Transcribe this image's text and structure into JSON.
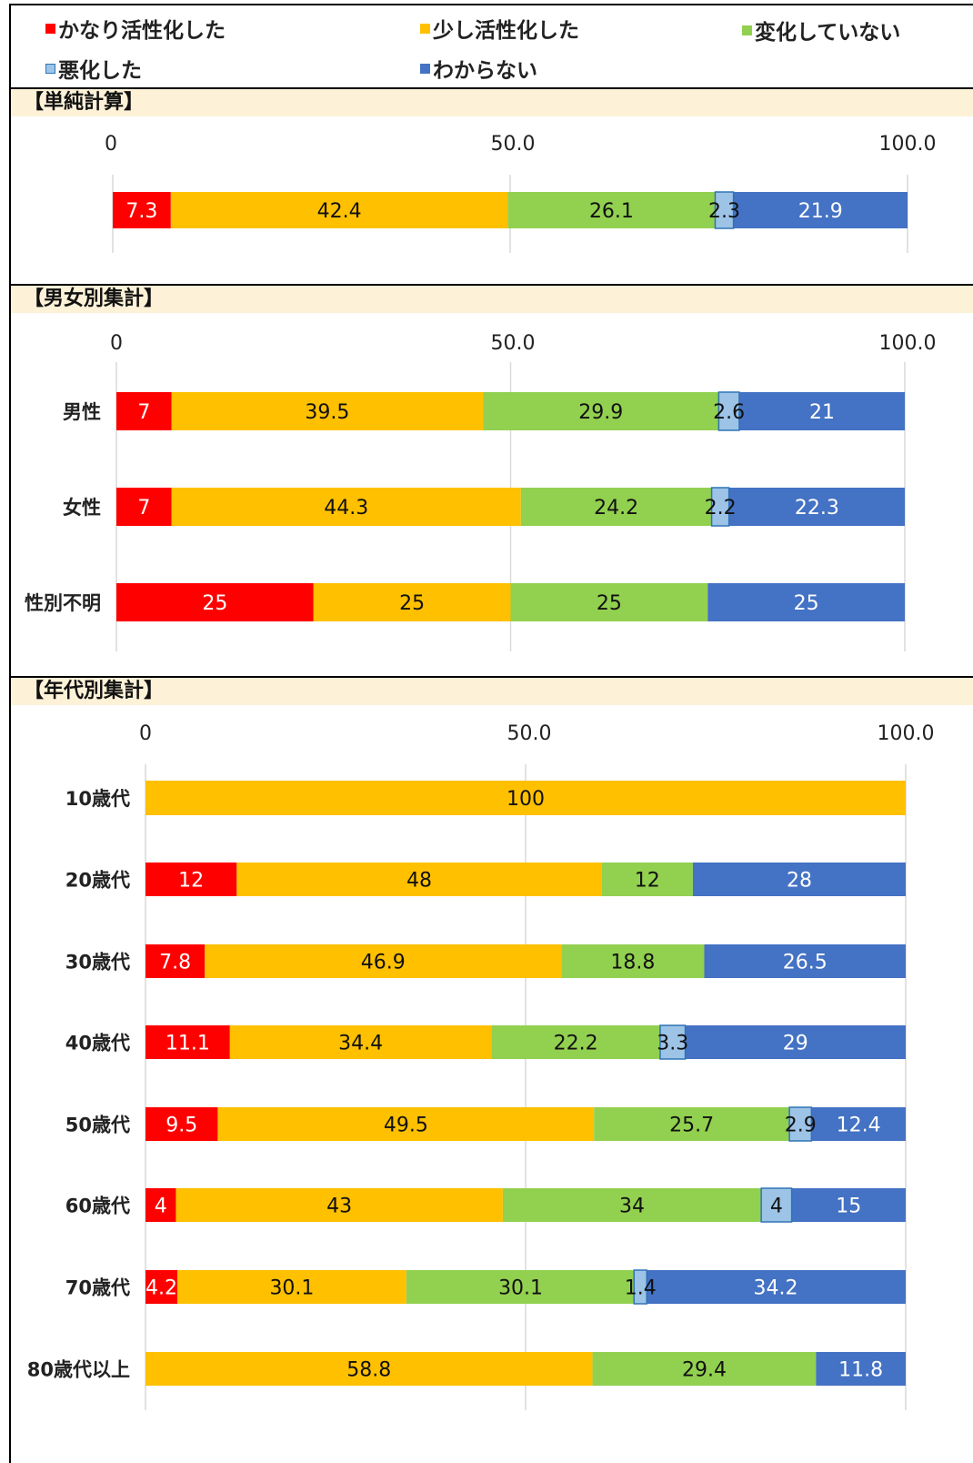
{
  "colors": {
    "kanari": "#ff0000",
    "sukoshi": "#ffc000",
    "henka_nashi": "#92d050",
    "akka": "#9dc3e6",
    "wakaranai": "#4472c4"
  },
  "legend": [
    {
      "label": "かなり活性化した",
      "color": "#ff0000"
    },
    {
      "label": "少し活性化した",
      "color": "#ffc000"
    },
    {
      "label": "変化していない",
      "color": "#92d050"
    },
    {
      "label": "悪化した",
      "color": "#9dc3e6"
    },
    {
      "label": "わからない",
      "color": "#4472c4"
    }
  ],
  "sections": {
    "simple": {
      "title": "【単純計算】"
    },
    "gender": {
      "title": "【男女別集計】"
    },
    "age": {
      "title": "【年代別集計】"
    }
  },
  "chart_data": [
    {
      "type": "bar",
      "stacked": true,
      "orientation": "horizontal",
      "title": "【単純計算】",
      "ticks": [
        "0",
        "50.0",
        "100.0"
      ],
      "xlim": [
        0,
        100
      ],
      "categories": [
        ""
      ],
      "series": [
        {
          "name": "かなり活性化した",
          "values": [
            7.3
          ]
        },
        {
          "name": "少し活性化した",
          "values": [
            42.4
          ]
        },
        {
          "name": "変化していない",
          "values": [
            26.1
          ]
        },
        {
          "name": "悪化した",
          "values": [
            2.3
          ]
        },
        {
          "name": "わからない",
          "values": [
            21.9
          ]
        }
      ]
    },
    {
      "type": "bar",
      "stacked": true,
      "orientation": "horizontal",
      "title": "【男女別集計】",
      "ticks": [
        "0",
        "50.0",
        "100.0"
      ],
      "xlim": [
        0,
        100
      ],
      "categories": [
        "男性",
        "女性",
        "性別不明"
      ],
      "series": [
        {
          "name": "かなり活性化した",
          "values": [
            7,
            7,
            25
          ]
        },
        {
          "name": "少し活性化した",
          "values": [
            39.5,
            44.3,
            25
          ]
        },
        {
          "name": "変化していない",
          "values": [
            29.9,
            24.2,
            25
          ]
        },
        {
          "name": "悪化した",
          "values": [
            2.6,
            2.2,
            0
          ]
        },
        {
          "name": "わからない",
          "values": [
            21,
            22.3,
            25
          ]
        }
      ]
    },
    {
      "type": "bar",
      "stacked": true,
      "orientation": "horizontal",
      "title": "【年代別集計】",
      "ticks": [
        "0",
        "50.0",
        "100.0"
      ],
      "xlim": [
        0,
        100
      ],
      "categories": [
        "10歳代",
        "20歳代",
        "30歳代",
        "40歳代",
        "50歳代",
        "60歳代",
        "70歳代",
        "80歳代以上"
      ],
      "series": [
        {
          "name": "かなり活性化した",
          "values": [
            0,
            12,
            7.8,
            11.1,
            9.5,
            4,
            4.2,
            0
          ]
        },
        {
          "name": "少し活性化した",
          "values": [
            100,
            48,
            46.9,
            34.4,
            49.5,
            43,
            30.1,
            58.8
          ]
        },
        {
          "name": "変化していない",
          "values": [
            0,
            12,
            18.8,
            22.2,
            25.7,
            34,
            30.1,
            29.4
          ]
        },
        {
          "name": "悪化した",
          "values": [
            0,
            0,
            0,
            3.3,
            2.9,
            4,
            1.4,
            0
          ]
        },
        {
          "name": "わからない",
          "values": [
            0,
            28,
            26.5,
            29,
            12.4,
            15,
            34.2,
            11.8
          ]
        }
      ]
    }
  ]
}
